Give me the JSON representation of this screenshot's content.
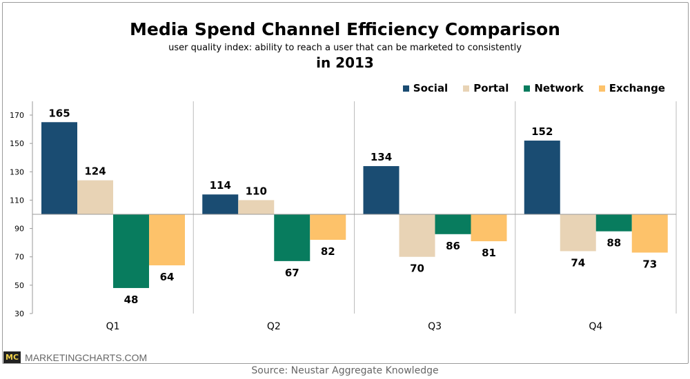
{
  "chart_data": {
    "type": "bar",
    "title": "Media Spend Channel Efficiency Comparison",
    "subtitle": "user quality index: ability to reach a user that can be marketed to consistently",
    "subtitle2": "in 2013",
    "categories": [
      "Q1",
      "Q2",
      "Q3",
      "Q4"
    ],
    "baseline": 100,
    "ylim": [
      30,
      170
    ],
    "yticks": [
      30,
      50,
      70,
      90,
      110,
      130,
      150,
      170
    ],
    "legend_position": "top-right",
    "series": [
      {
        "name": "Social",
        "color": "#1a4c72",
        "values": [
          165,
          114,
          134,
          152
        ]
      },
      {
        "name": "Portal",
        "color": "#e8d3b5",
        "values": [
          124,
          110,
          70,
          74
        ]
      },
      {
        "name": "Network",
        "color": "#087c5e",
        "values": [
          48,
          67,
          86,
          88
        ]
      },
      {
        "name": "Exchange",
        "color": "#fdc26a",
        "values": [
          64,
          82,
          81,
          73
        ]
      }
    ]
  },
  "branding": {
    "logo": "MC",
    "site": "MARKETINGCHARTS.COM"
  },
  "source": "Source: Neustar Aggregate Knowledge"
}
